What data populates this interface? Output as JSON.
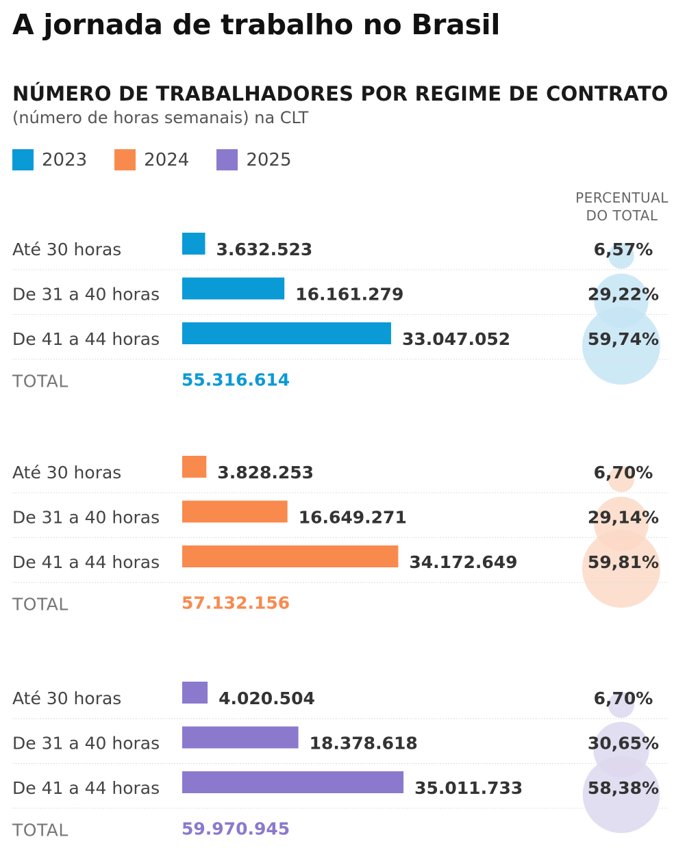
{
  "chart_data": {
    "type": "bar",
    "title": "A jornada de trabalho no Brasil",
    "subtitle": "NÚMERO DE TRABALHADORES POR REGIME DE CONTRATO",
    "note": "(número de horas semanais) na CLT",
    "percent_header": [
      "PERCENTUAL",
      "DO TOTAL"
    ],
    "total_label": "TOTAL",
    "legend_placement": "top-left",
    "categories": [
      "Até 30 horas",
      "De 31 a 40 horas",
      "De 41 a 44 horas"
    ],
    "series": [
      {
        "name": "2023",
        "color": "#0a9ad6",
        "bubble_color": "#c6e5f4",
        "values": [
          3632523,
          16161279,
          33047052
        ],
        "value_labels": [
          "3.632.523",
          "16.161.279",
          "33.047.052"
        ],
        "percents": [
          6.57,
          29.22,
          59.74
        ],
        "percent_labels": [
          "6,57%",
          "29,22%",
          "59,74%"
        ],
        "total": 55316614,
        "total_label": "55.316.614"
      },
      {
        "name": "2024",
        "color": "#f98a4e",
        "bubble_color": "#fcd9c5",
        "values": [
          3828253,
          16649271,
          34172649
        ],
        "value_labels": [
          "3.828.253",
          "16.649.271",
          "34.172.649"
        ],
        "percents": [
          6.7,
          29.14,
          59.81
        ],
        "percent_labels": [
          "6,70%",
          "29,14%",
          "59,81%"
        ],
        "total": 57132156,
        "total_label": "57.132.156"
      },
      {
        "name": "2025",
        "color": "#8b79cd",
        "bubble_color": "#ddd8ef",
        "values": [
          4020504,
          18378618,
          35011733
        ],
        "value_labels": [
          "4.020.504",
          "18.378.618",
          "35.011.733"
        ],
        "percents": [
          6.7,
          30.65,
          58.38
        ],
        "percent_labels": [
          "6,70%",
          "30,65%",
          "58,38%"
        ],
        "total": 59970945,
        "total_label": "59.970.945"
      }
    ]
  }
}
